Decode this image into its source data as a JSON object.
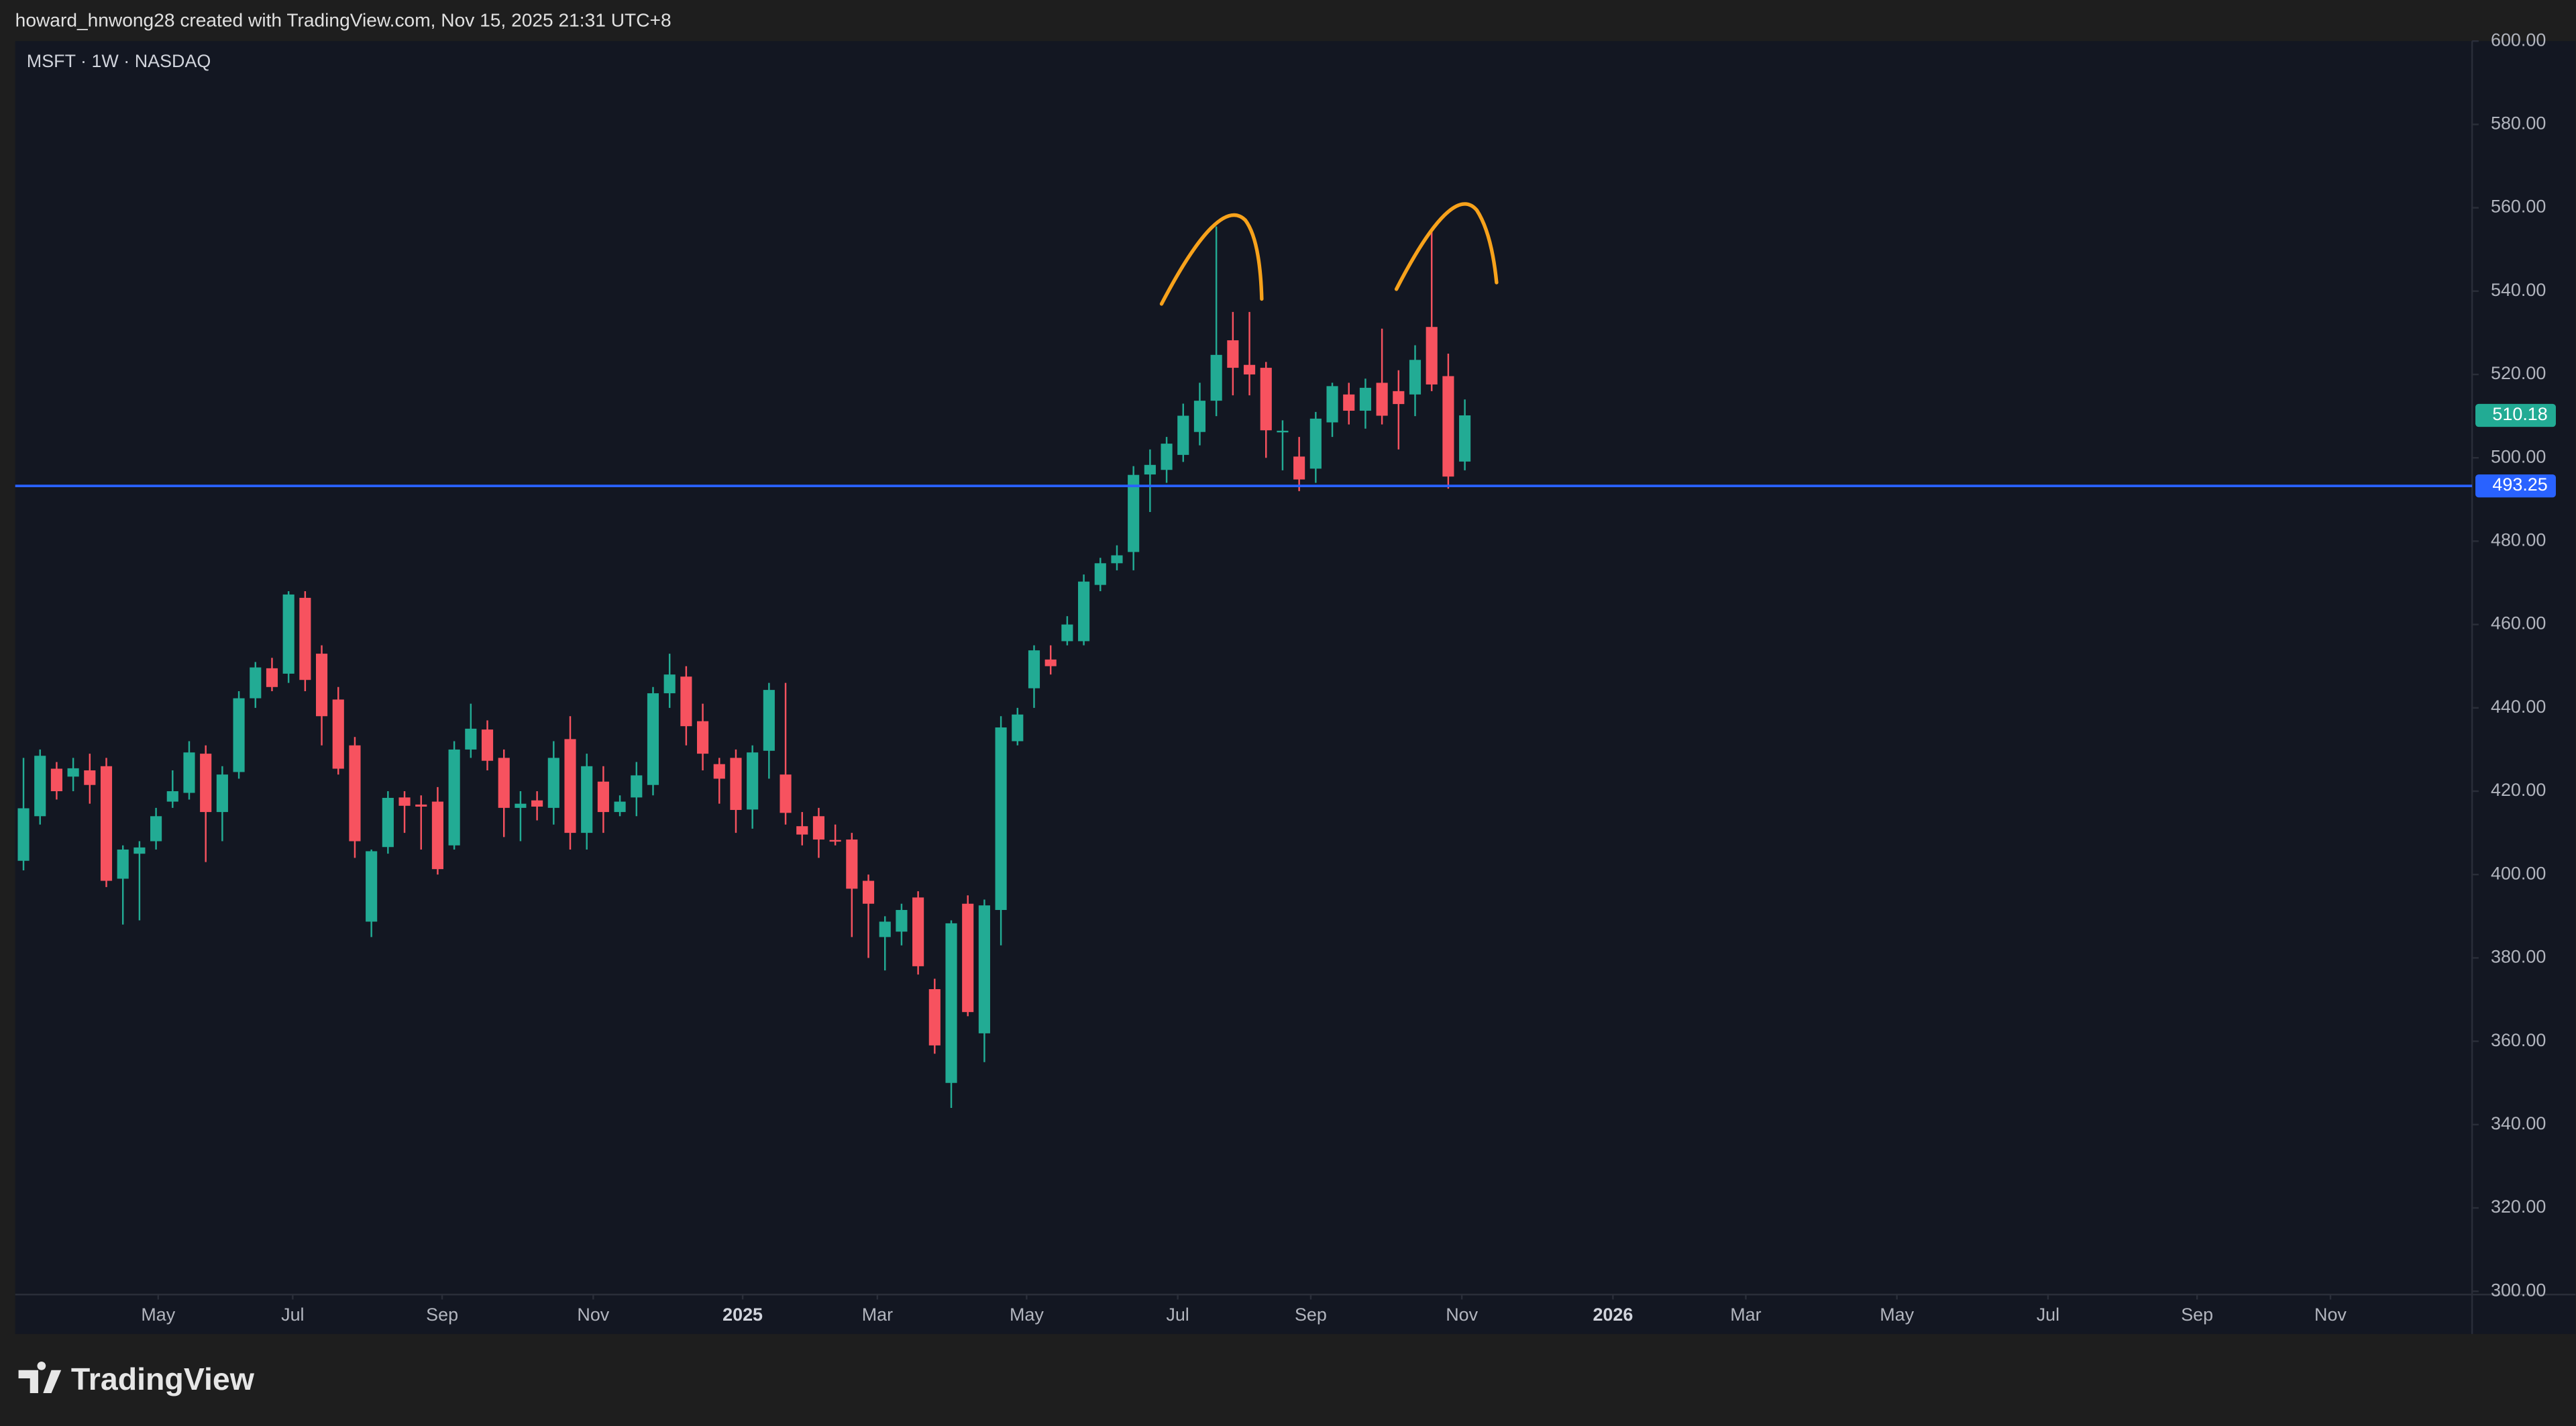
{
  "header": {
    "credit": "howard_hnwong28 created with TradingView.com, Nov 15, 2025 21:31 UTC+8"
  },
  "footer": {
    "brand": "TradingView"
  },
  "chart_data": {
    "type": "candlestick",
    "title": "MSFT · 1W · NASDAQ",
    "up_color": "#22ab94",
    "down_color": "#f7525f",
    "open": [
      403.3,
      414,
      425.4,
      423.5,
      425,
      426,
      399,
      405,
      408,
      417.5,
      419.6,
      429,
      415,
      424.6,
      442.3,
      449.5,
      448.2,
      466.4,
      453,
      442,
      431,
      388.7,
      406.6,
      418.5,
      416.8,
      417.5,
      407,
      430,
      434.8,
      428,
      416,
      417.8,
      416,
      432.5,
      410,
      422.3,
      415,
      418.5,
      421.5,
      443.5,
      447.5,
      436.8,
      426.5,
      428,
      415.6,
      429.7,
      424,
      411.6,
      414,
      408.3,
      408.4,
      398.5,
      385,
      386.3,
      394.5,
      372.5,
      350,
      393,
      361.9,
      391.5,
      432,
      444.7,
      451.6,
      456,
      456,
      469.5,
      474.7,
      477.4,
      496,
      497.1,
      500.7,
      506.2,
      513.7,
      528.2,
      522.3,
      521.6,
      506.2,
      500.3,
      497.4,
      508.5,
      515.2,
      511.3,
      518,
      516,
      515.2,
      531.4,
      519.6,
      499.1
    ],
    "high": [
      428,
      430,
      427,
      428,
      429,
      428,
      407,
      408,
      416,
      425,
      432,
      431,
      426,
      444,
      451,
      452,
      468,
      468,
      455,
      445,
      433,
      406,
      420,
      420,
      419,
      421,
      432,
      441,
      437,
      430,
      420,
      420,
      432,
      438,
      429,
      426,
      419,
      427,
      445,
      453,
      450,
      441,
      428,
      430,
      431,
      446,
      446,
      415,
      416,
      412,
      410,
      400,
      390,
      393,
      396,
      375,
      389,
      395,
      394,
      438,
      440,
      455,
      455,
      462,
      472,
      476,
      479,
      498,
      502,
      505,
      513,
      518,
      555.5,
      535,
      535,
      523,
      509,
      505,
      511,
      518,
      518,
      519,
      531,
      521,
      527,
      555,
      525,
      514
    ],
    "low": [
      401,
      412,
      418,
      420,
      417,
      397,
      388,
      389,
      406,
      416,
      418,
      403,
      408,
      423,
      440,
      444,
      446,
      444,
      431,
      424,
      404,
      385,
      405,
      410,
      406,
      400,
      406,
      428,
      425,
      409,
      408,
      413,
      412,
      406,
      406,
      410,
      414,
      414,
      419,
      440,
      431,
      425,
      417,
      410,
      411,
      423,
      412,
      407,
      404,
      407,
      385,
      380,
      377,
      383,
      376,
      357,
      344,
      366,
      355,
      383,
      431,
      440,
      448,
      455,
      455,
      468,
      473,
      473,
      487,
      494,
      499,
      503,
      510,
      515,
      515,
      500,
      497,
      492,
      494,
      505,
      508,
      507,
      508,
      502,
      510,
      516,
      492.6,
      497
    ],
    "close": [
      415.9,
      428.5,
      420,
      425.5,
      421.5,
      398.5,
      406,
      406.5,
      414,
      420,
      429.3,
      415,
      424,
      442.3,
      449.7,
      445,
      467.2,
      446.7,
      438,
      425.4,
      408,
      405.6,
      418.4,
      416.5,
      416.3,
      401.3,
      430,
      435,
      427.3,
      416,
      417,
      416.3,
      428,
      410,
      426,
      415,
      417.5,
      423.8,
      443.5,
      448,
      435.6,
      429,
      423,
      415.5,
      429.3,
      444.3,
      414.8,
      409.6,
      408.4,
      408,
      396.6,
      393,
      388.7,
      391.5,
      378,
      359,
      388.3,
      367,
      392.6,
      435.3,
      438.4,
      453.8,
      450,
      460,
      470.3,
      474.7,
      476.6,
      495.9,
      498.3,
      503.4,
      510.1,
      513.7,
      524.7,
      521.6,
      520,
      506.6,
      506.5,
      494.8,
      509.4,
      517.2,
      511.3,
      516.8,
      510.1,
      512.9,
      523.5,
      517.6,
      495.5,
      510.18
    ],
    "xlim": [
      -0.5,
      147.8
    ],
    "xticks": [
      {
        "value": 8.13,
        "label": "May"
      },
      {
        "value": 16.25,
        "label": "Jul"
      },
      {
        "value": 25.27,
        "label": "Sep"
      },
      {
        "value": 34.39,
        "label": "Nov"
      },
      {
        "value": 43.41,
        "label": "2025"
      },
      {
        "value": 51.54,
        "label": "Mar"
      },
      {
        "value": 60.55,
        "label": "May"
      },
      {
        "value": 69.67,
        "label": "Jul"
      },
      {
        "value": 77.7,
        "label": "Sep"
      },
      {
        "value": 86.82,
        "label": "Nov"
      },
      {
        "value": 95.94,
        "label": "2026"
      },
      {
        "value": 103.96,
        "label": "Mar"
      },
      {
        "value": 113.08,
        "label": "May"
      },
      {
        "value": 122.2,
        "label": "Jul"
      },
      {
        "value": 131.2,
        "label": "Sep"
      },
      {
        "value": 139.25,
        "label": "Nov"
      }
    ],
    "ylim": [
      300,
      600
    ],
    "yticks": [
      {
        "value": 300,
        "label": "300.00"
      },
      {
        "value": 320,
        "label": "320.00"
      },
      {
        "value": 340,
        "label": "340.00"
      },
      {
        "value": 360,
        "label": "360.00"
      },
      {
        "value": 380,
        "label": "380.00"
      },
      {
        "value": 400,
        "label": "400.00"
      },
      {
        "value": 420,
        "label": "420.00"
      },
      {
        "value": 440,
        "label": "440.00"
      },
      {
        "value": 460,
        "label": "460.00"
      },
      {
        "value": 480,
        "label": "480.00"
      },
      {
        "value": 500,
        "label": "500.00"
      },
      {
        "value": 520,
        "label": "520.00"
      },
      {
        "value": 540,
        "label": "540.00"
      },
      {
        "value": 560,
        "label": "560.00"
      },
      {
        "value": 580,
        "label": "580.00"
      },
      {
        "value": 600,
        "label": "600.00"
      }
    ],
    "last_price": 510.18,
    "hline": {
      "value": 493.25,
      "color": "#2962ff"
    }
  }
}
